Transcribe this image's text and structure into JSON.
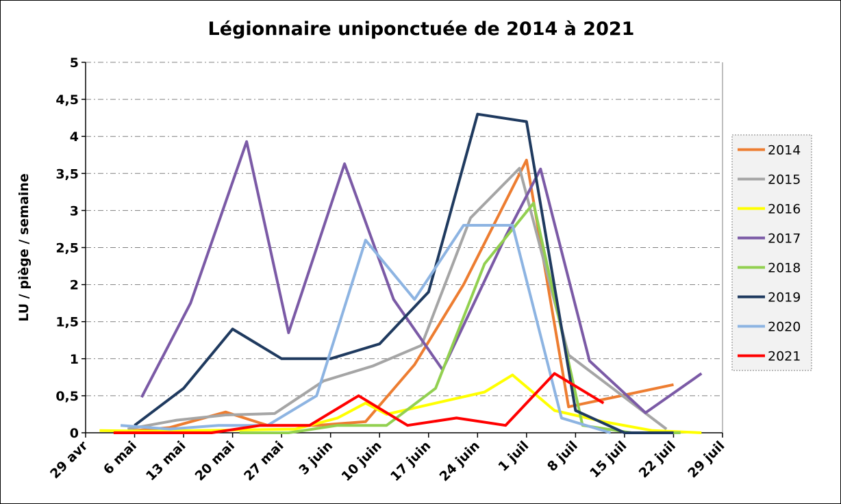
{
  "chart_data": {
    "type": "line",
    "title": "Légionnaire uniponctuée de 2014 à 2021",
    "ylabel": "LU / piège / semaine",
    "xlabel": "",
    "ylim": [
      0,
      5
    ],
    "yticks": [
      0,
      0.5,
      1,
      1.5,
      2,
      2.5,
      3,
      3.5,
      4,
      4.5,
      5
    ],
    "ytick_labels": [
      "0",
      "0,5",
      "1",
      "1,5",
      "2",
      "2,5",
      "3",
      "3,5",
      "4",
      "4,5",
      "5"
    ],
    "xlim": [
      "2021-04-29",
      "2021-07-29"
    ],
    "xticks": [
      "2021-04-29",
      "2021-05-06",
      "2021-05-13",
      "2021-05-20",
      "2021-05-27",
      "2021-06-03",
      "2021-06-10",
      "2021-06-17",
      "2021-06-24",
      "2021-07-01",
      "2021-07-08",
      "2021-07-15",
      "2021-07-22",
      "2021-07-29"
    ],
    "xtick_labels": [
      "29 avr",
      "6 mai",
      "13 mai",
      "20 mai",
      "27 mai",
      "3 juin",
      "10 juin",
      "17 juin",
      "24 juin",
      "1 juil",
      "8 juil",
      "15 juil",
      "22 juil",
      "29 juil"
    ],
    "grid": true,
    "legend_position": "right",
    "series": [
      {
        "name": "2014",
        "color": "#ED7D31",
        "points": [
          [
            "2021-05-05",
            0.02
          ],
          [
            "2021-05-11",
            0.07
          ],
          [
            "2021-05-19",
            0.28
          ],
          [
            "2021-05-25",
            0.1
          ],
          [
            "2021-06-01",
            0.1
          ],
          [
            "2021-06-08",
            0.15
          ],
          [
            "2021-06-15",
            0.92
          ],
          [
            "2021-06-22",
            2.0
          ],
          [
            "2021-07-01",
            3.68
          ],
          [
            "2021-07-07",
            0.35
          ],
          [
            "2021-07-22",
            0.65
          ]
        ]
      },
      {
        "name": "2015",
        "color": "#A5A5A5",
        "points": [
          [
            "2021-05-05",
            0.05
          ],
          [
            "2021-05-12",
            0.17
          ],
          [
            "2021-05-19",
            0.24
          ],
          [
            "2021-05-26",
            0.26
          ],
          [
            "2021-06-02",
            0.7
          ],
          [
            "2021-06-09",
            0.9
          ],
          [
            "2021-06-16",
            1.18
          ],
          [
            "2021-06-23",
            2.9
          ],
          [
            "2021-06-30",
            3.57
          ],
          [
            "2021-07-07",
            1.05
          ],
          [
            "2021-07-21",
            0.05
          ]
        ]
      },
      {
        "name": "2016",
        "color": "#FFFF00",
        "points": [
          [
            "2021-05-01",
            0.03
          ],
          [
            "2021-05-08",
            0.02
          ],
          [
            "2021-05-15",
            0.03
          ],
          [
            "2021-05-22",
            0.04
          ],
          [
            "2021-05-29",
            0.05
          ],
          [
            "2021-06-04",
            0.2
          ],
          [
            "2021-06-08",
            0.4
          ],
          [
            "2021-06-11",
            0.25
          ],
          [
            "2021-06-18",
            0.4
          ],
          [
            "2021-06-25",
            0.55
          ],
          [
            "2021-06-29",
            0.78
          ],
          [
            "2021-07-05",
            0.3
          ],
          [
            "2021-07-12",
            0.15
          ],
          [
            "2021-07-19",
            0.03
          ],
          [
            "2021-07-26",
            0.0
          ]
        ]
      },
      {
        "name": "2017",
        "color": "#7B5AA6",
        "points": [
          [
            "2021-05-07",
            0.48
          ],
          [
            "2021-05-14",
            1.75
          ],
          [
            "2021-05-22",
            3.93
          ],
          [
            "2021-05-28",
            1.35
          ],
          [
            "2021-06-05",
            3.63
          ],
          [
            "2021-06-12",
            1.8
          ],
          [
            "2021-06-19",
            0.85
          ],
          [
            "2021-06-28",
            2.65
          ],
          [
            "2021-07-03",
            3.56
          ],
          [
            "2021-07-10",
            0.97
          ],
          [
            "2021-07-18",
            0.27
          ],
          [
            "2021-07-26",
            0.8
          ]
        ]
      },
      {
        "name": "2018",
        "color": "#92D050",
        "points": [
          [
            "2021-05-21",
            0.0
          ],
          [
            "2021-05-28",
            0.0
          ],
          [
            "2021-06-04",
            0.1
          ],
          [
            "2021-06-11",
            0.1
          ],
          [
            "2021-06-18",
            0.6
          ],
          [
            "2021-06-25",
            2.28
          ],
          [
            "2021-07-02",
            3.1
          ],
          [
            "2021-07-09",
            0.1
          ],
          [
            "2021-07-16",
            0.0
          ],
          [
            "2021-07-23",
            0.0
          ]
        ]
      },
      {
        "name": "2019",
        "color": "#1F3A5F",
        "points": [
          [
            "2021-05-06",
            0.1
          ],
          [
            "2021-05-13",
            0.6
          ],
          [
            "2021-05-20",
            1.4
          ],
          [
            "2021-05-27",
            1.0
          ],
          [
            "2021-06-03",
            1.0
          ],
          [
            "2021-06-10",
            1.2
          ],
          [
            "2021-06-17",
            1.9
          ],
          [
            "2021-06-24",
            4.3
          ],
          [
            "2021-07-01",
            4.2
          ],
          [
            "2021-07-08",
            0.3
          ],
          [
            "2021-07-15",
            0.0
          ],
          [
            "2021-07-22",
            0.0
          ]
        ]
      },
      {
        "name": "2020",
        "color": "#8DB4E2",
        "points": [
          [
            "2021-05-04",
            0.1
          ],
          [
            "2021-05-11",
            0.05
          ],
          [
            "2021-05-18",
            0.1
          ],
          [
            "2021-05-25",
            0.1
          ],
          [
            "2021-06-01",
            0.5
          ],
          [
            "2021-06-08",
            2.6
          ],
          [
            "2021-06-15",
            1.8
          ],
          [
            "2021-06-22",
            2.8
          ],
          [
            "2021-06-29",
            2.8
          ],
          [
            "2021-07-06",
            0.2
          ],
          [
            "2021-07-13",
            0.0
          ]
        ]
      },
      {
        "name": "2021",
        "color": "#FF0000",
        "points": [
          [
            "2021-05-03",
            0.0
          ],
          [
            "2021-05-10",
            0.0
          ],
          [
            "2021-05-17",
            0.0
          ],
          [
            "2021-05-24",
            0.1
          ],
          [
            "2021-05-31",
            0.1
          ],
          [
            "2021-06-07",
            0.5
          ],
          [
            "2021-06-14",
            0.1
          ],
          [
            "2021-06-21",
            0.2
          ],
          [
            "2021-06-28",
            0.1
          ],
          [
            "2021-07-05",
            0.8
          ],
          [
            "2021-07-12",
            0.4
          ]
        ]
      }
    ]
  }
}
